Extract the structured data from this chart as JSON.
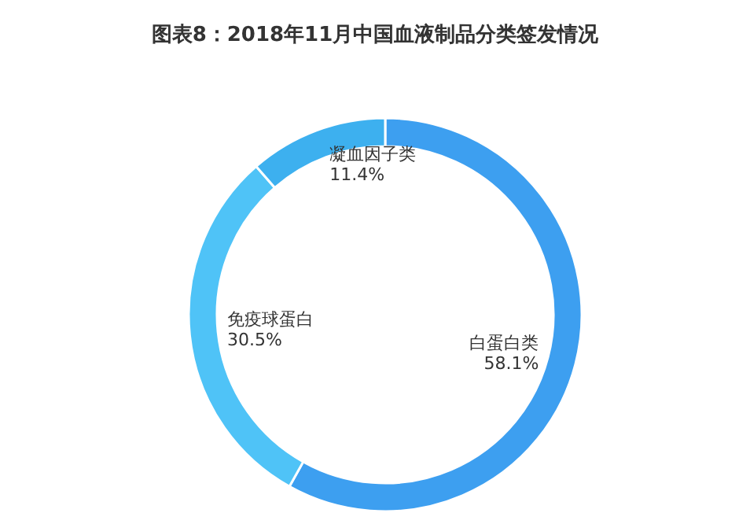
{
  "chart_data": {
    "type": "donut",
    "title": "图表8：2018年11月中国血液制品分类签发情况",
    "categories": [
      "白蛋白类",
      "免疫球蛋白",
      "凝血因子类"
    ],
    "values": [
      58.1,
      30.5,
      11.4
    ],
    "colors": [
      "#3d9ff0",
      "#4fc3f7",
      "#3db0ef"
    ],
    "value_labels": [
      "58.1%",
      "30.5%",
      "11.4%"
    ]
  }
}
